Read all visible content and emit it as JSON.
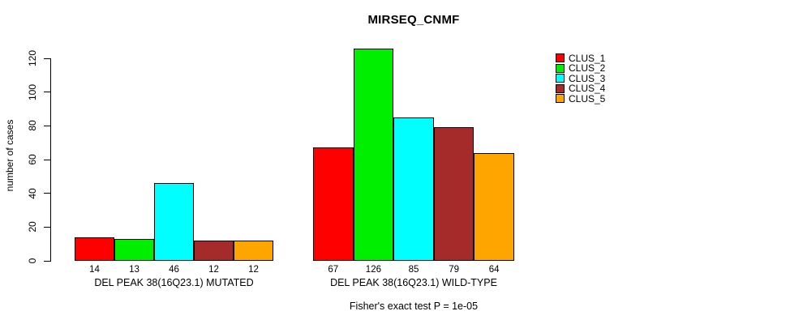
{
  "chart_data": {
    "type": "bar",
    "title": "MIRSEQ_CNMF",
    "ylabel": "number of cases",
    "xlabel": "",
    "footnote": "Fisher's exact test P = 1e-05",
    "ylim": [
      0,
      120
    ],
    "yticks": [
      0,
      20,
      40,
      60,
      80,
      100,
      120
    ],
    "grid": false,
    "legend_position": "top-right",
    "bar_value_labels": true,
    "categories": [
      "DEL PEAK 38(16Q23.1) MUTATED",
      "DEL PEAK 38(16Q23.1) WILD-TYPE"
    ],
    "series": [
      {
        "name": "CLUS_1",
        "color": "#ff0000",
        "values": [
          14,
          67
        ]
      },
      {
        "name": "CLUS_2",
        "color": "#00ee00",
        "values": [
          13,
          126
        ]
      },
      {
        "name": "CLUS_3",
        "color": "#00ffff",
        "values": [
          46,
          85
        ]
      },
      {
        "name": "CLUS_4",
        "color": "#a52a2a",
        "values": [
          12,
          79
        ]
      },
      {
        "name": "CLUS_5",
        "color": "#ffa500",
        "values": [
          12,
          64
        ]
      }
    ]
  }
}
